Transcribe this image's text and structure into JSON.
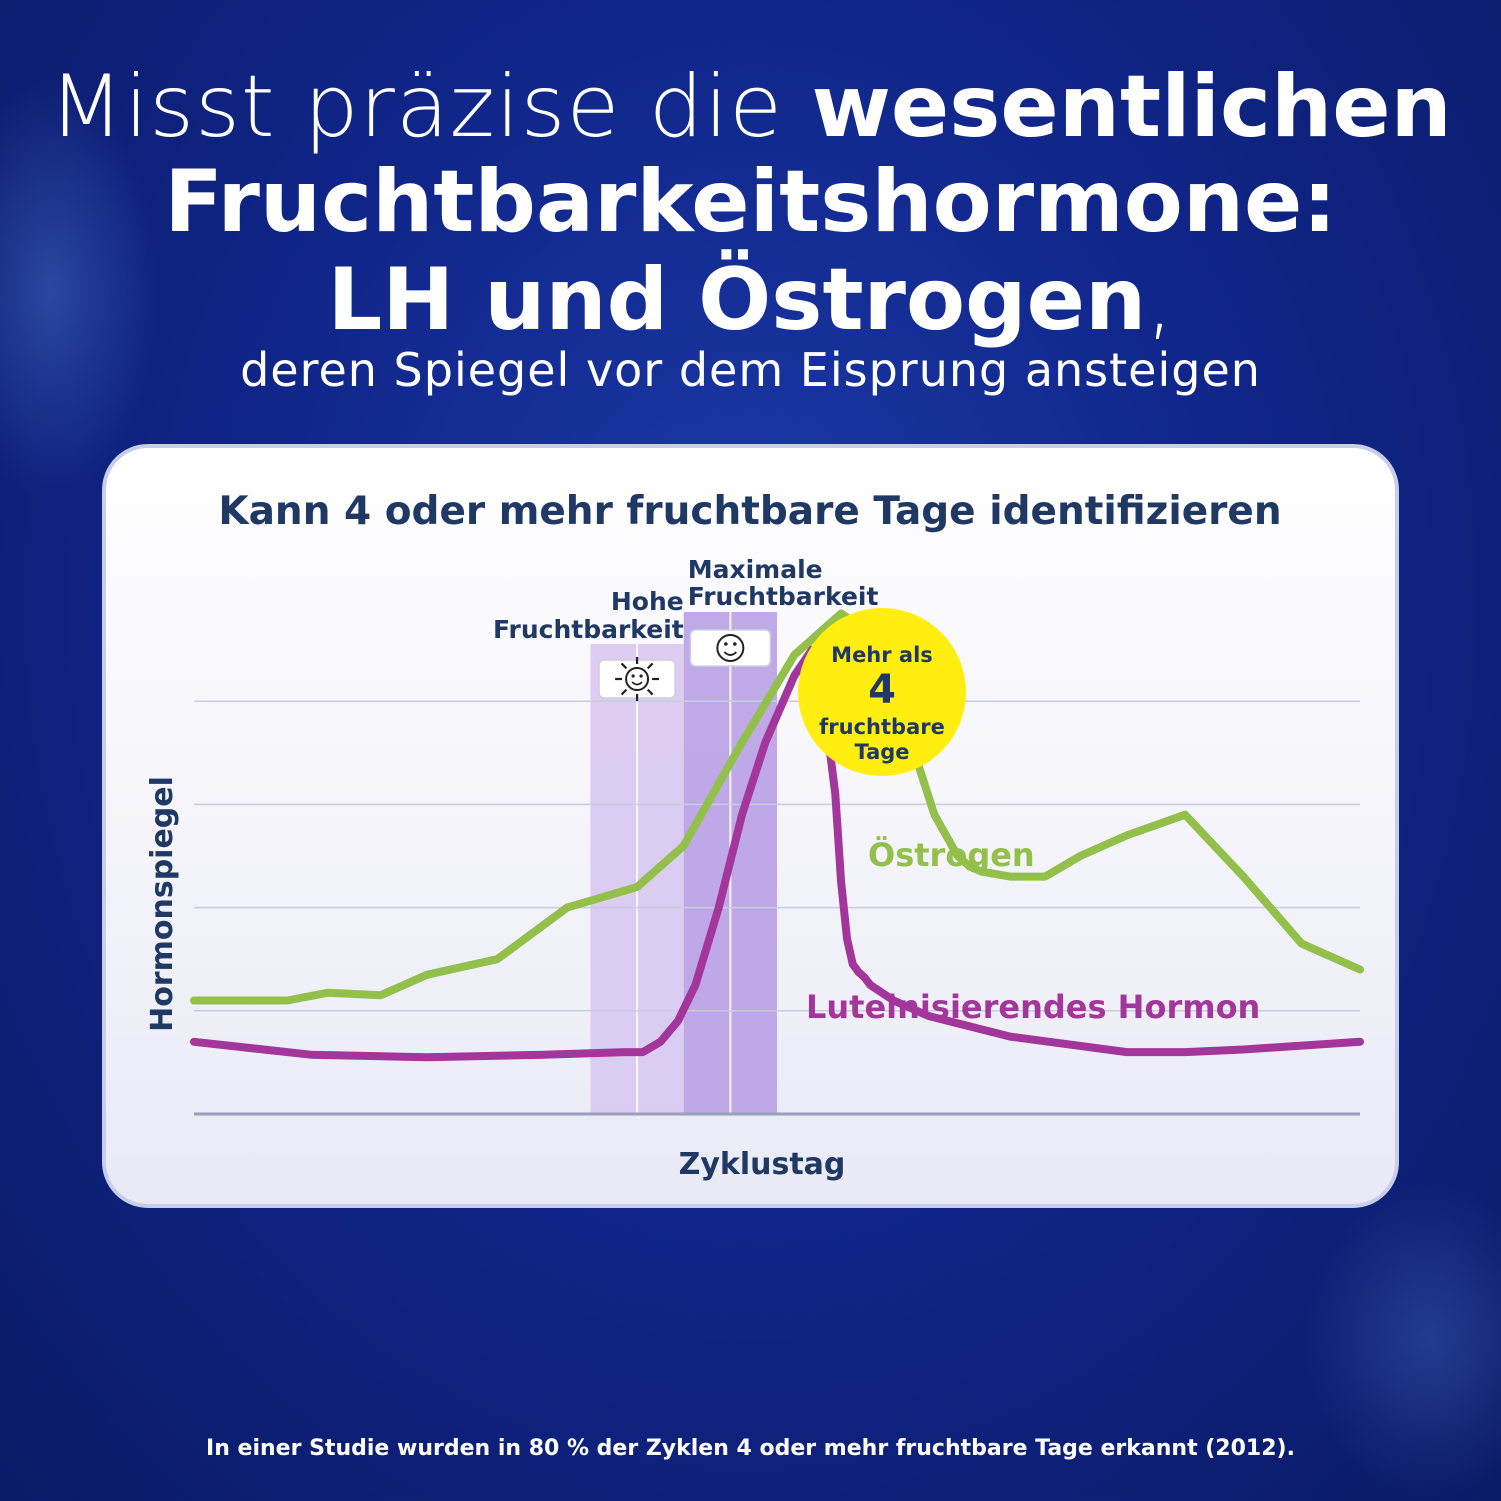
{
  "headline": {
    "line1_light": "Misst präzise die ",
    "line1_bold": "wesentlichen",
    "line2": "Fruchtbarkeitshormone:",
    "line3_bold": "LH und Östrogen",
    "line3_comma": ",",
    "line4": "deren Spiegel vor dem Eisprung ansteigen"
  },
  "footnote": "In einer Studie wurden in 80 % der Zyklen 4 oder mehr fruchtbare Tage erkannt (2012).",
  "colors": {
    "background": "#10268a",
    "navy_text": "#1f3864",
    "estrogen": "#92c04a",
    "lh": "#a2369a",
    "high_band": "#d8c8f0",
    "peak_band": "#b9a0e4",
    "badge": "#ffee10"
  },
  "chart_data": {
    "type": "line",
    "title": "Kann 4 oder mehr fruchtbare Tage identifizieren",
    "xlabel": "Zyklustag",
    "ylabel": "Hormonspiegel",
    "xlim": [
      0,
      100
    ],
    "ylim": [
      0,
      100
    ],
    "grid": true,
    "series": [
      {
        "name": "Östrogen",
        "color": "#92c04a",
        "x": [
          0,
          8,
          11.5,
          16,
          20,
          26,
          32,
          38,
          42,
          47,
          51.5,
          55.5,
          57.5,
          59.5,
          61.5,
          63.5,
          65.5,
          66.5,
          67.5,
          70,
          73,
          76,
          80,
          85,
          90,
          95,
          100
        ],
        "y": [
          22,
          22,
          23.5,
          23,
          27,
          30,
          40,
          44,
          52,
          72,
          89,
          97,
          94,
          86,
          72,
          58,
          50,
          48,
          47,
          46,
          46,
          50,
          54,
          58,
          46,
          33,
          28
        ]
      },
      {
        "name": "Luteinisierendes Hormon",
        "color": "#a2369a",
        "x": [
          0,
          10,
          20,
          30,
          37,
          38.5,
          40,
          41.5,
          43,
          45,
          47,
          49,
          51.5,
          53,
          54,
          55,
          55.5,
          56,
          56.5,
          57,
          57.5,
          58,
          60,
          63,
          70,
          80,
          85,
          90,
          100
        ],
        "y": [
          14,
          11.5,
          11,
          11.5,
          12,
          12,
          14,
          18,
          25,
          40,
          58,
          72,
          85,
          90,
          80,
          62,
          45,
          34,
          29,
          27.5,
          26.5,
          25,
          22,
          19,
          15,
          12,
          12,
          12.5,
          14
        ]
      }
    ],
    "bands": [
      {
        "label_line1": "Hohe",
        "label_line2": "Fruchtbarkeit",
        "x_start": 34,
        "x_end": 42,
        "icon": "smiley-flashing-icon"
      },
      {
        "label_line1": "Maximale",
        "label_line2": "Fruchtbarkeit",
        "x_start": 42,
        "x_end": 50,
        "icon": "smiley-solid-icon"
      }
    ],
    "badge": {
      "line1": "Mehr als",
      "number": "4",
      "line2": "fruchtbare",
      "line3": "Tage"
    }
  }
}
